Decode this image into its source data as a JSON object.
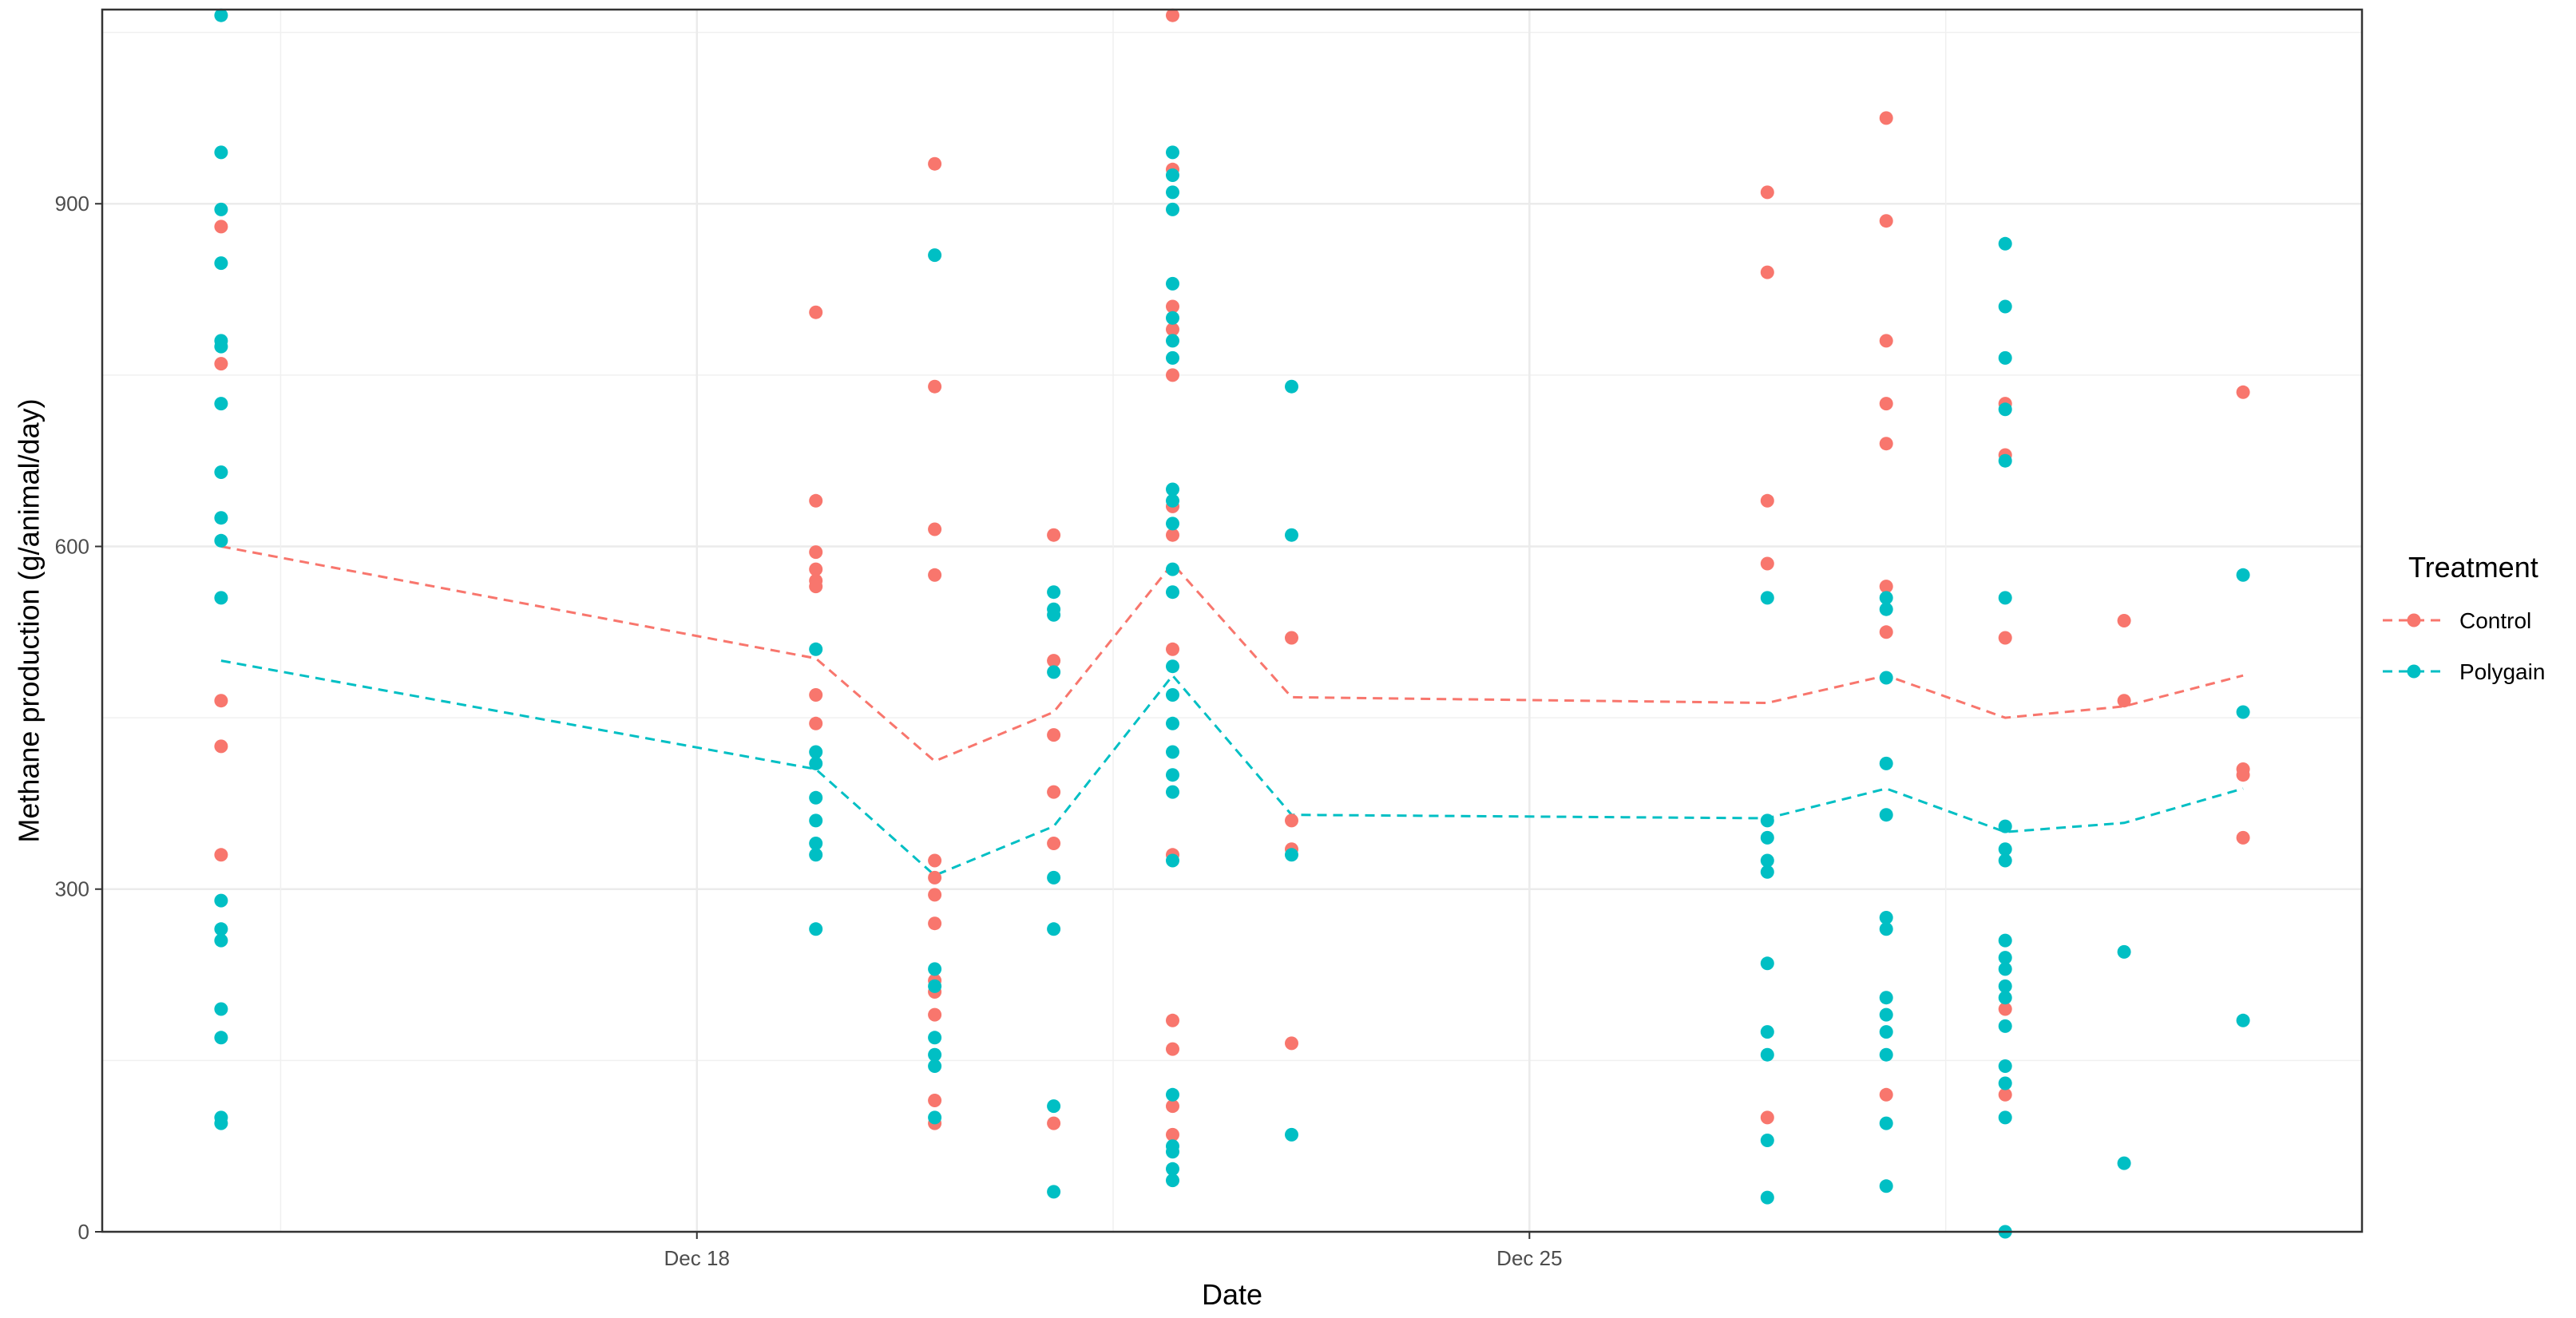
{
  "chart_data": {
    "type": "scatter",
    "title": "",
    "xlabel": "Date",
    "ylabel": "Methane production (g/animal/day)",
    "x_ticks": [
      "Dec 18",
      "Dec 25"
    ],
    "y_ticks": [
      "0",
      "300",
      "600",
      "900"
    ],
    "xlim": [
      "2023-12-13",
      "2024-01-01"
    ],
    "ylim": [
      0,
      1070
    ],
    "grid": true,
    "legend": {
      "title": "Treatment",
      "position": "right"
    },
    "series": [
      {
        "name": "Control",
        "color": "#F8766D",
        "points": [
          [
            "2023-12-14",
            880
          ],
          [
            "2023-12-14",
            760
          ],
          [
            "2023-12-14",
            465
          ],
          [
            "2023-12-14",
            425
          ],
          [
            "2023-12-14",
            330
          ],
          [
            "2023-12-19",
            805
          ],
          [
            "2023-12-19",
            640
          ],
          [
            "2023-12-19",
            595
          ],
          [
            "2023-12-19",
            580
          ],
          [
            "2023-12-19",
            570
          ],
          [
            "2023-12-19",
            565
          ],
          [
            "2023-12-19",
            470
          ],
          [
            "2023-12-19",
            445
          ],
          [
            "2023-12-20",
            935
          ],
          [
            "2023-12-20",
            740
          ],
          [
            "2023-12-20",
            615
          ],
          [
            "2023-12-20",
            575
          ],
          [
            "2023-12-20",
            325
          ],
          [
            "2023-12-20",
            310
          ],
          [
            "2023-12-20",
            295
          ],
          [
            "2023-12-20",
            270
          ],
          [
            "2023-12-20",
            220
          ],
          [
            "2023-12-20",
            210
          ],
          [
            "2023-12-20",
            190
          ],
          [
            "2023-12-20",
            115
          ],
          [
            "2023-12-20",
            95
          ],
          [
            "2023-12-21",
            610
          ],
          [
            "2023-12-21",
            500
          ],
          [
            "2023-12-21",
            435
          ],
          [
            "2023-12-21",
            385
          ],
          [
            "2023-12-21",
            340
          ],
          [
            "2023-12-21",
            95
          ],
          [
            "2023-12-22",
            1065
          ],
          [
            "2023-12-22",
            930
          ],
          [
            "2023-12-22",
            810
          ],
          [
            "2023-12-22",
            790
          ],
          [
            "2023-12-22",
            750
          ],
          [
            "2023-12-22",
            635
          ],
          [
            "2023-12-22",
            610
          ],
          [
            "2023-12-22",
            510
          ],
          [
            "2023-12-22",
            330
          ],
          [
            "2023-12-22",
            185
          ],
          [
            "2023-12-22",
            160
          ],
          [
            "2023-12-22",
            110
          ],
          [
            "2023-12-22",
            85
          ],
          [
            "2023-12-23",
            520
          ],
          [
            "2023-12-23",
            360
          ],
          [
            "2023-12-23",
            335
          ],
          [
            "2023-12-23",
            165
          ],
          [
            "2023-12-27",
            910
          ],
          [
            "2023-12-27",
            840
          ],
          [
            "2023-12-27",
            640
          ],
          [
            "2023-12-27",
            585
          ],
          [
            "2023-12-27",
            100
          ],
          [
            "2023-12-28",
            975
          ],
          [
            "2023-12-28",
            885
          ],
          [
            "2023-12-28",
            780
          ],
          [
            "2023-12-28",
            725
          ],
          [
            "2023-12-28",
            690
          ],
          [
            "2023-12-28",
            565
          ],
          [
            "2023-12-28",
            525
          ],
          [
            "2023-12-28",
            120
          ],
          [
            "2023-12-29",
            725
          ],
          [
            "2023-12-29",
            680
          ],
          [
            "2023-12-29",
            520
          ],
          [
            "2023-12-29",
            195
          ],
          [
            "2023-12-29",
            120
          ],
          [
            "2023-12-30",
            535
          ],
          [
            "2023-12-30",
            465
          ],
          [
            "2023-12-31",
            735
          ],
          [
            "2023-12-31",
            405
          ],
          [
            "2023-12-31",
            400
          ],
          [
            "2023-12-31",
            345
          ]
        ],
        "mean_line": [
          [
            "2023-12-14",
            600
          ],
          [
            "2023-12-19",
            502
          ],
          [
            "2023-12-20",
            412
          ],
          [
            "2023-12-21",
            455
          ],
          [
            "2023-12-22",
            585
          ],
          [
            "2023-12-23",
            468
          ],
          [
            "2023-12-27",
            463
          ],
          [
            "2023-12-28",
            487
          ],
          [
            "2023-12-29",
            450
          ],
          [
            "2023-12-30",
            460
          ],
          [
            "2023-12-31",
            487
          ]
        ]
      },
      {
        "name": "Polygain",
        "color": "#00BFC4",
        "points": [
          [
            "2023-12-14",
            1065
          ],
          [
            "2023-12-14",
            945
          ],
          [
            "2023-12-14",
            895
          ],
          [
            "2023-12-14",
            848
          ],
          [
            "2023-12-14",
            780
          ],
          [
            "2023-12-14",
            775
          ],
          [
            "2023-12-14",
            725
          ],
          [
            "2023-12-14",
            665
          ],
          [
            "2023-12-14",
            625
          ],
          [
            "2023-12-14",
            605
          ],
          [
            "2023-12-14",
            555
          ],
          [
            "2023-12-14",
            290
          ],
          [
            "2023-12-14",
            265
          ],
          [
            "2023-12-14",
            255
          ],
          [
            "2023-12-14",
            195
          ],
          [
            "2023-12-14",
            170
          ],
          [
            "2023-12-14",
            100
          ],
          [
            "2023-12-14",
            95
          ],
          [
            "2023-12-19",
            510
          ],
          [
            "2023-12-19",
            420
          ],
          [
            "2023-12-19",
            410
          ],
          [
            "2023-12-19",
            380
          ],
          [
            "2023-12-19",
            360
          ],
          [
            "2023-12-19",
            340
          ],
          [
            "2023-12-19",
            330
          ],
          [
            "2023-12-19",
            265
          ],
          [
            "2023-12-20",
            855
          ],
          [
            "2023-12-20",
            230
          ],
          [
            "2023-12-20",
            215
          ],
          [
            "2023-12-20",
            170
          ],
          [
            "2023-12-20",
            155
          ],
          [
            "2023-12-20",
            145
          ],
          [
            "2023-12-20",
            100
          ],
          [
            "2023-12-21",
            560
          ],
          [
            "2023-12-21",
            545
          ],
          [
            "2023-12-21",
            540
          ],
          [
            "2023-12-21",
            490
          ],
          [
            "2023-12-21",
            310
          ],
          [
            "2023-12-21",
            265
          ],
          [
            "2023-12-21",
            110
          ],
          [
            "2023-12-21",
            35
          ],
          [
            "2023-12-22",
            945
          ],
          [
            "2023-12-22",
            925
          ],
          [
            "2023-12-22",
            910
          ],
          [
            "2023-12-22",
            895
          ],
          [
            "2023-12-22",
            830
          ],
          [
            "2023-12-22",
            800
          ],
          [
            "2023-12-22",
            780
          ],
          [
            "2023-12-22",
            765
          ],
          [
            "2023-12-22",
            650
          ],
          [
            "2023-12-22",
            640
          ],
          [
            "2023-12-22",
            620
          ],
          [
            "2023-12-22",
            580
          ],
          [
            "2023-12-22",
            560
          ],
          [
            "2023-12-22",
            495
          ],
          [
            "2023-12-22",
            470
          ],
          [
            "2023-12-22",
            445
          ],
          [
            "2023-12-22",
            420
          ],
          [
            "2023-12-22",
            400
          ],
          [
            "2023-12-22",
            385
          ],
          [
            "2023-12-22",
            325
          ],
          [
            "2023-12-22",
            120
          ],
          [
            "2023-12-22",
            75
          ],
          [
            "2023-12-22",
            70
          ],
          [
            "2023-12-22",
            55
          ],
          [
            "2023-12-22",
            45
          ],
          [
            "2023-12-23",
            740
          ],
          [
            "2023-12-23",
            610
          ],
          [
            "2023-12-23",
            330
          ],
          [
            "2023-12-23",
            85
          ],
          [
            "2023-12-27",
            555
          ],
          [
            "2023-12-27",
            360
          ],
          [
            "2023-12-27",
            345
          ],
          [
            "2023-12-27",
            325
          ],
          [
            "2023-12-27",
            315
          ],
          [
            "2023-12-27",
            235
          ],
          [
            "2023-12-27",
            175
          ],
          [
            "2023-12-27",
            155
          ],
          [
            "2023-12-27",
            80
          ],
          [
            "2023-12-27",
            30
          ],
          [
            "2023-12-28",
            555
          ],
          [
            "2023-12-28",
            545
          ],
          [
            "2023-12-28",
            485
          ],
          [
            "2023-12-28",
            410
          ],
          [
            "2023-12-28",
            365
          ],
          [
            "2023-12-28",
            275
          ],
          [
            "2023-12-28",
            265
          ],
          [
            "2023-12-28",
            205
          ],
          [
            "2023-12-28",
            190
          ],
          [
            "2023-12-28",
            175
          ],
          [
            "2023-12-28",
            155
          ],
          [
            "2023-12-28",
            95
          ],
          [
            "2023-12-28",
            40
          ],
          [
            "2023-12-29",
            865
          ],
          [
            "2023-12-29",
            810
          ],
          [
            "2023-12-29",
            765
          ],
          [
            "2023-12-29",
            720
          ],
          [
            "2023-12-29",
            675
          ],
          [
            "2023-12-29",
            555
          ],
          [
            "2023-12-29",
            355
          ],
          [
            "2023-12-29",
            335
          ],
          [
            "2023-12-29",
            325
          ],
          [
            "2023-12-29",
            255
          ],
          [
            "2023-12-29",
            240
          ],
          [
            "2023-12-29",
            230
          ],
          [
            "2023-12-29",
            215
          ],
          [
            "2023-12-29",
            205
          ],
          [
            "2023-12-29",
            180
          ],
          [
            "2023-12-29",
            145
          ],
          [
            "2023-12-29",
            130
          ],
          [
            "2023-12-29",
            100
          ],
          [
            "2023-12-29",
            0
          ],
          [
            "2023-12-30",
            245
          ],
          [
            "2023-12-30",
            60
          ],
          [
            "2023-12-31",
            575
          ],
          [
            "2023-12-31",
            455
          ],
          [
            "2023-12-31",
            185
          ]
        ],
        "mean_line": [
          [
            "2023-12-14",
            500
          ],
          [
            "2023-12-19",
            405
          ],
          [
            "2023-12-20",
            312
          ],
          [
            "2023-12-21",
            355
          ],
          [
            "2023-12-22",
            487
          ],
          [
            "2023-12-23",
            365
          ],
          [
            "2023-12-27",
            362
          ],
          [
            "2023-12-28",
            388
          ],
          [
            "2023-12-29",
            350
          ],
          [
            "2023-12-30",
            358
          ],
          [
            "2023-12-31",
            388
          ]
        ]
      }
    ]
  }
}
